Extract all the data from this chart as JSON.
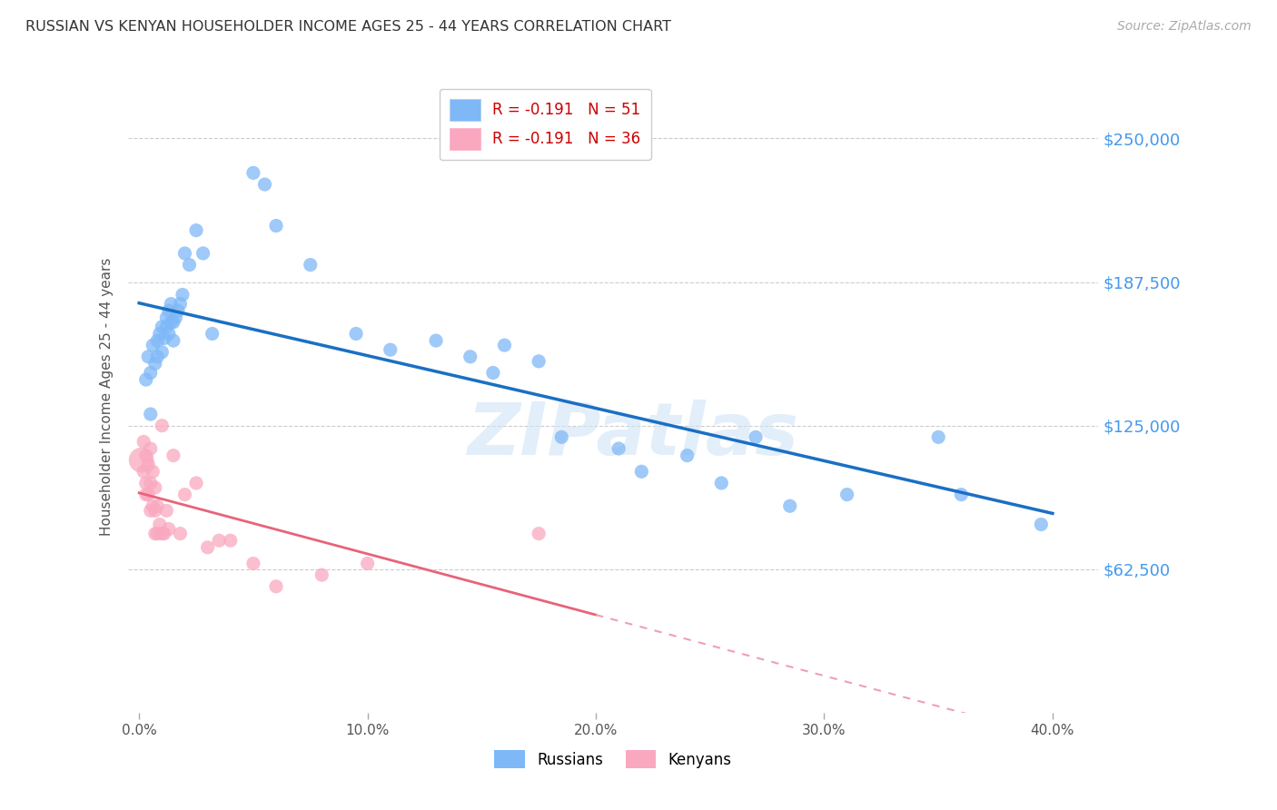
{
  "title": "RUSSIAN VS KENYAN HOUSEHOLDER INCOME AGES 25 - 44 YEARS CORRELATION CHART",
  "source": "Source: ZipAtlas.com",
  "ylabel": "Householder Income Ages 25 - 44 years",
  "xlabel_ticks": [
    "0.0%",
    "10.0%",
    "20.0%",
    "30.0%",
    "40.0%"
  ],
  "xlabel_vals": [
    0.0,
    0.1,
    0.2,
    0.3,
    0.4
  ],
  "ytick_labels": [
    "$62,500",
    "$125,000",
    "$187,500",
    "$250,000"
  ],
  "ytick_vals": [
    62500,
    125000,
    187500,
    250000
  ],
  "ylim": [
    0,
    275000
  ],
  "xlim": [
    -0.005,
    0.42
  ],
  "watermark": "ZIPatlas",
  "legend_russian": "R = -0.191   N = 51",
  "legend_kenyan": "R = -0.191   N = 36",
  "russian_color": "#7EB8F7",
  "kenyan_color": "#F9A8C0",
  "russian_line_color": "#1A6FC4",
  "kenyan_line_color": "#E8637A",
  "kenyan_line_dash_color": "#F0A0B0",
  "russian_points_x": [
    0.003,
    0.004,
    0.005,
    0.005,
    0.006,
    0.007,
    0.008,
    0.008,
    0.009,
    0.01,
    0.01,
    0.011,
    0.012,
    0.012,
    0.013,
    0.013,
    0.014,
    0.014,
    0.015,
    0.015,
    0.016,
    0.017,
    0.018,
    0.019,
    0.02,
    0.022,
    0.025,
    0.028,
    0.032,
    0.05,
    0.055,
    0.06,
    0.075,
    0.095,
    0.11,
    0.13,
    0.145,
    0.155,
    0.16,
    0.175,
    0.185,
    0.21,
    0.22,
    0.24,
    0.255,
    0.27,
    0.285,
    0.31,
    0.35,
    0.36,
    0.395
  ],
  "russian_points_y": [
    145000,
    155000,
    148000,
    130000,
    160000,
    152000,
    162000,
    155000,
    165000,
    157000,
    168000,
    163000,
    168000,
    172000,
    165000,
    175000,
    170000,
    178000,
    162000,
    170000,
    172000,
    175000,
    178000,
    182000,
    200000,
    195000,
    210000,
    200000,
    165000,
    235000,
    230000,
    212000,
    195000,
    165000,
    158000,
    162000,
    155000,
    148000,
    160000,
    153000,
    120000,
    115000,
    105000,
    112000,
    100000,
    120000,
    90000,
    95000,
    120000,
    95000,
    82000
  ],
  "kenyan_points_x": [
    0.001,
    0.002,
    0.002,
    0.003,
    0.003,
    0.003,
    0.004,
    0.004,
    0.005,
    0.005,
    0.005,
    0.006,
    0.006,
    0.007,
    0.007,
    0.007,
    0.008,
    0.008,
    0.009,
    0.01,
    0.01,
    0.011,
    0.012,
    0.013,
    0.015,
    0.018,
    0.02,
    0.025,
    0.03,
    0.035,
    0.04,
    0.05,
    0.06,
    0.08,
    0.1,
    0.175
  ],
  "kenyan_points_y": [
    110000,
    118000,
    105000,
    112000,
    100000,
    95000,
    108000,
    95000,
    115000,
    100000,
    88000,
    105000,
    90000,
    98000,
    88000,
    78000,
    90000,
    78000,
    82000,
    125000,
    78000,
    78000,
    88000,
    80000,
    112000,
    78000,
    95000,
    100000,
    72000,
    75000,
    75000,
    65000,
    55000,
    60000,
    65000,
    78000
  ],
  "background_color": "#FFFFFF",
  "grid_color": "#CCCCCC",
  "russian_line_xrange": [
    0.0,
    0.4
  ],
  "kenyan_line_xrange": [
    0.0,
    0.4
  ]
}
